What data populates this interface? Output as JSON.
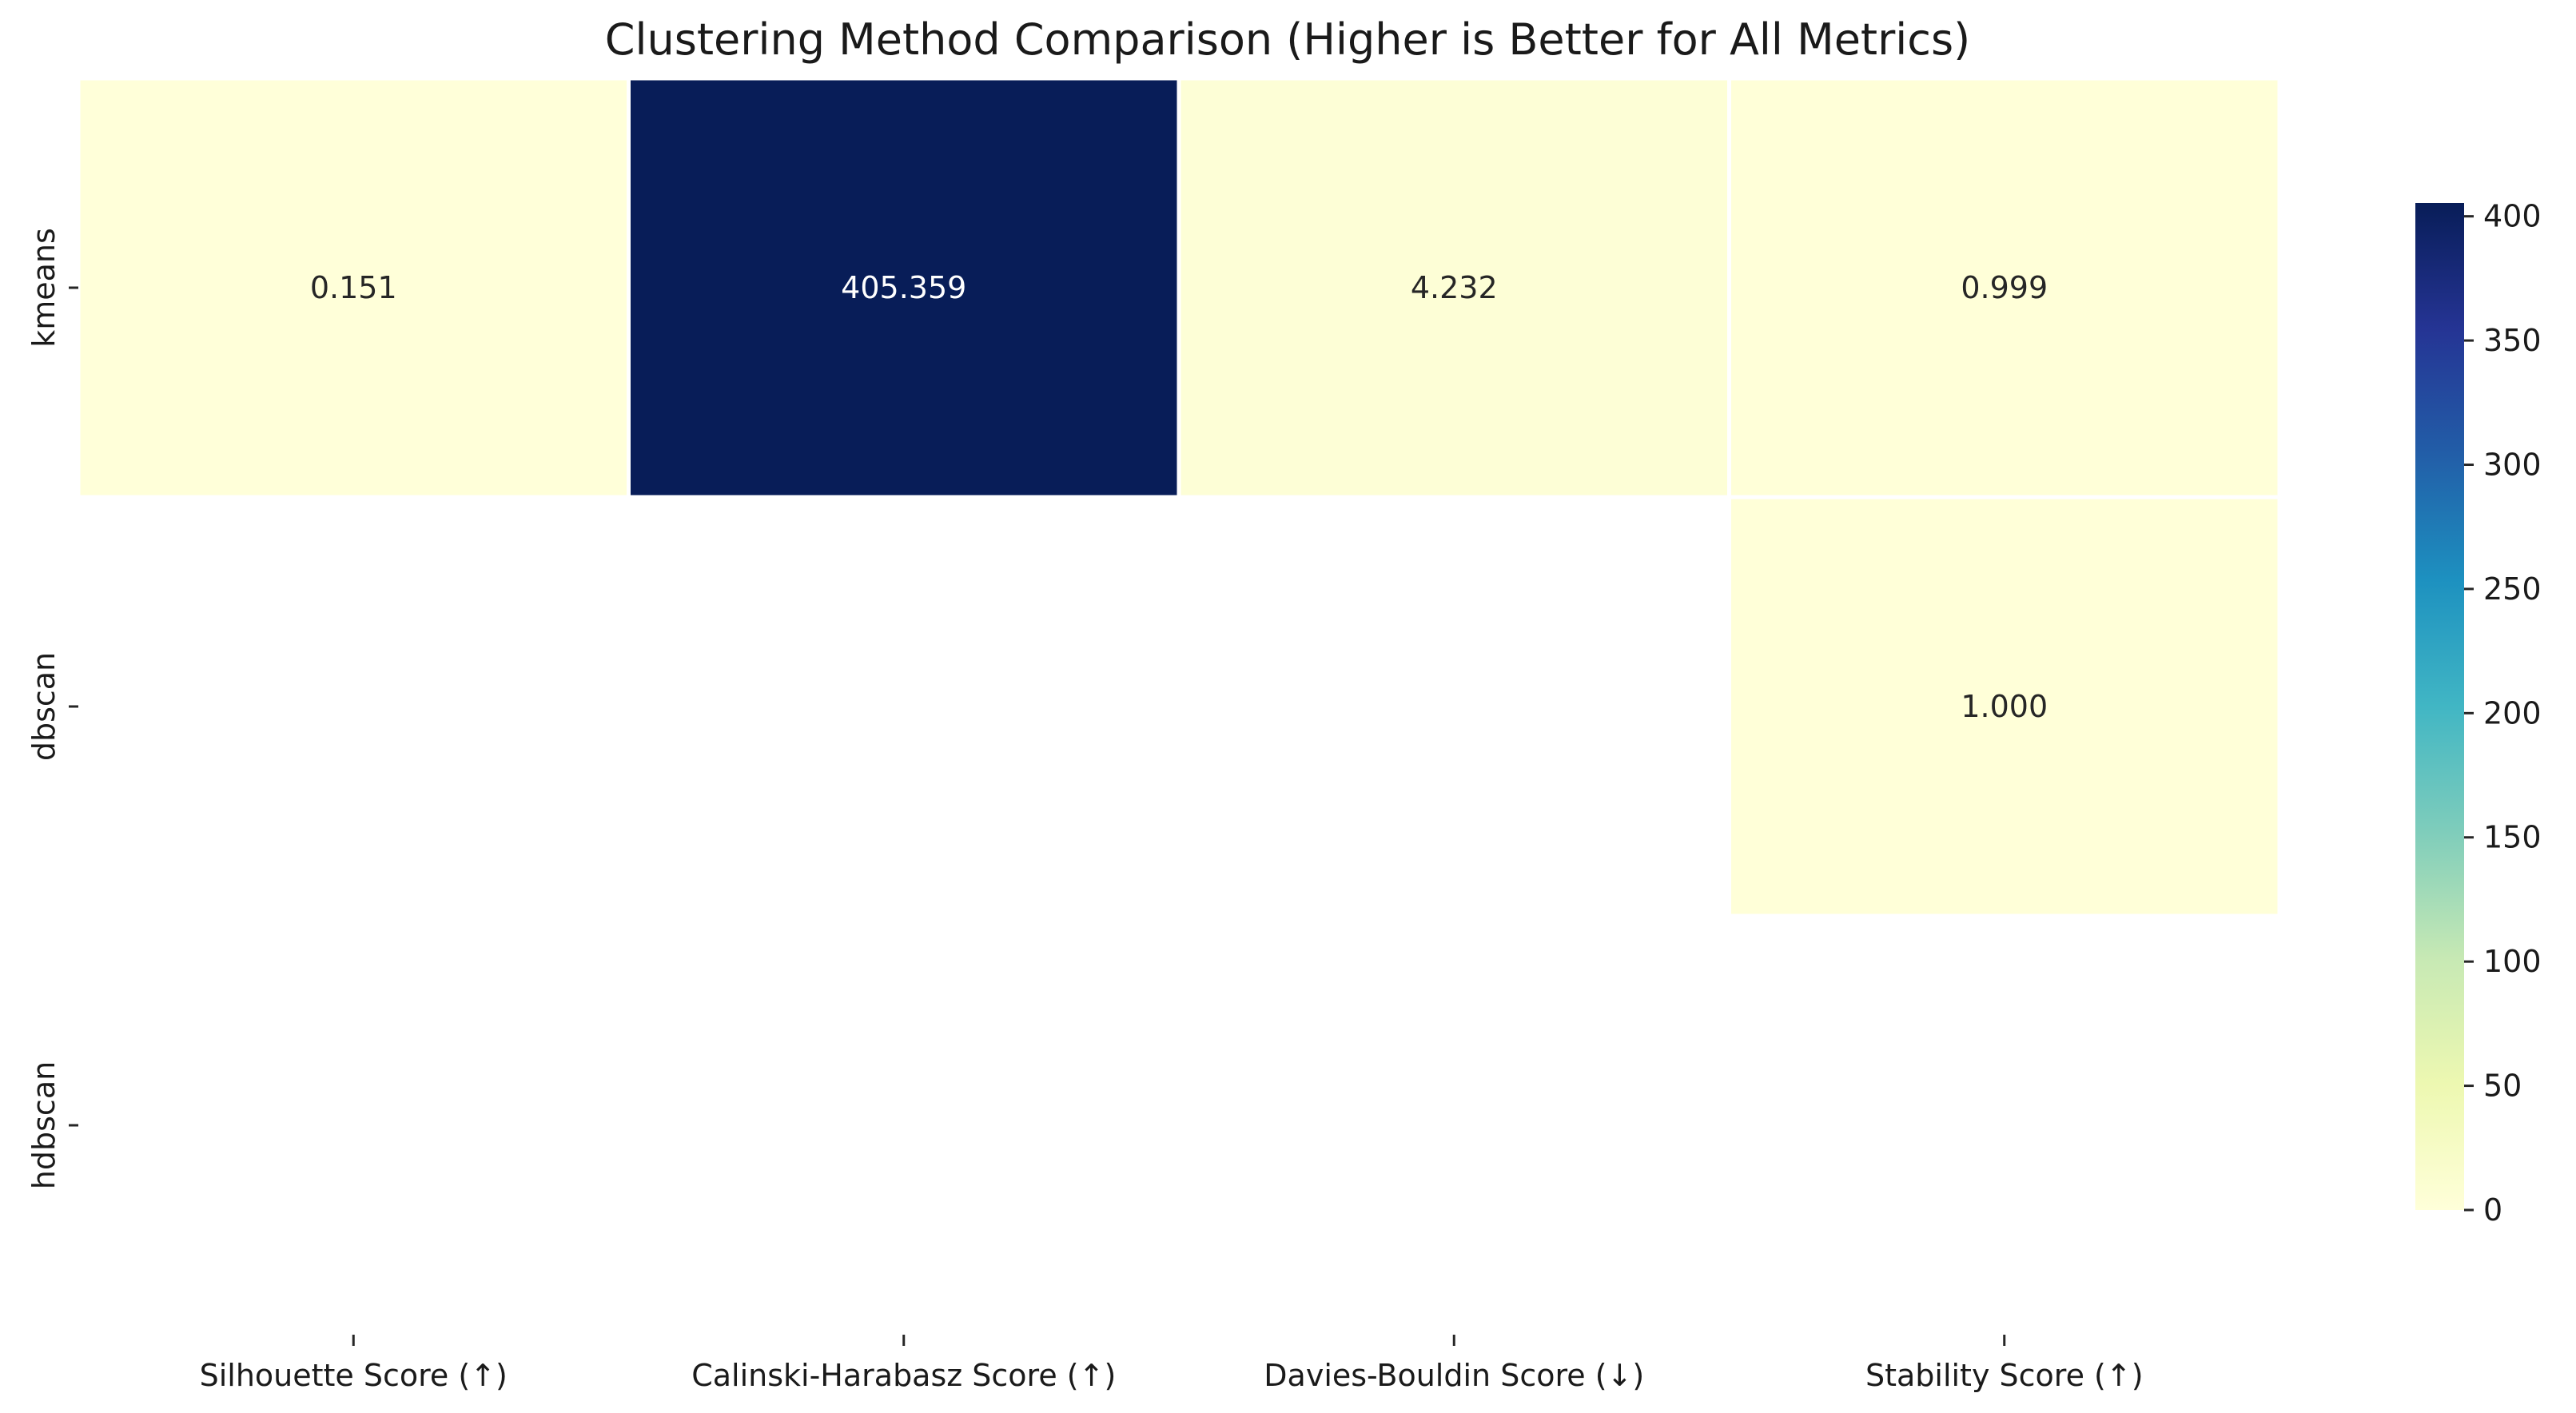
{
  "chart_data": {
    "type": "heatmap",
    "title": "Clustering Method Comparison (Higher is Better for All Metrics)",
    "rows": [
      "kmeans",
      "dbscan",
      "hdbscan"
    ],
    "columns": [
      "Silhouette Score (↑)",
      "Calinski-Harabasz Score (↑)",
      "Davies-Bouldin Score (↓)",
      "Stability Score (↑)"
    ],
    "values": [
      [
        0.151,
        405.359,
        4.232,
        0.999
      ],
      [
        null,
        null,
        null,
        1.0
      ],
      [
        null,
        null,
        null,
        null
      ]
    ],
    "labels": [
      [
        "0.151",
        "405.359",
        "4.232",
        "0.999"
      ],
      [
        "",
        "",
        "",
        "1.000"
      ],
      [
        "",
        "",
        "",
        ""
      ]
    ],
    "colorscale": "YlGnBu",
    "colorbar": {
      "min": 0,
      "max": 405.359,
      "ticks": [
        0,
        50,
        100,
        150,
        200,
        250,
        300,
        350,
        400
      ]
    },
    "missing_cells": "blank"
  }
}
